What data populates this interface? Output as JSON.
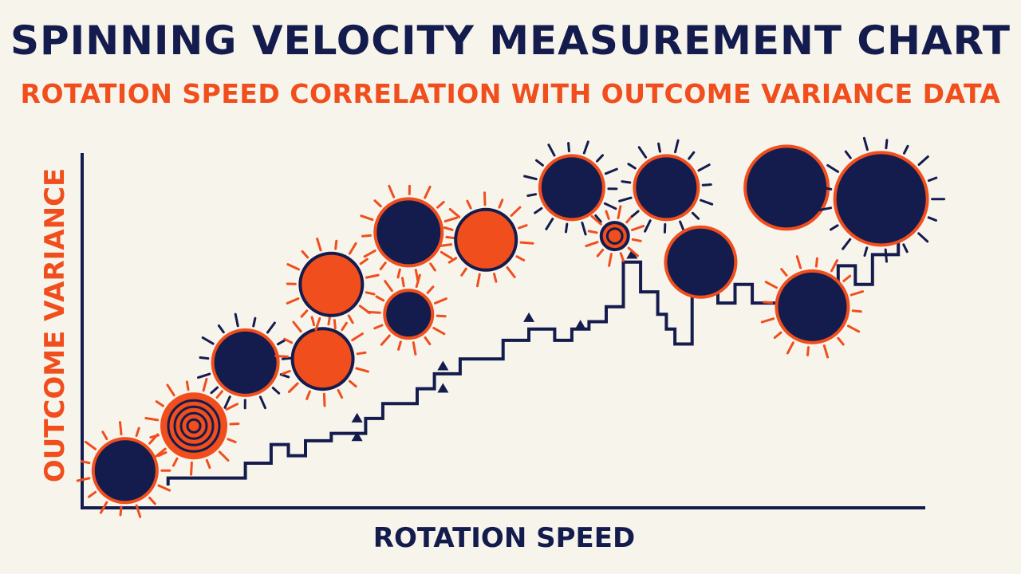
{
  "colors": {
    "navy": "#141b4d",
    "orange": "#f04e1c",
    "background": "#f7f4ec"
  },
  "chart_data": {
    "type": "scatter",
    "title": "SPINNING VELOCITY MEASUREMENT CHART",
    "subtitle": "ROTATION SPEED CORRELATION WITH OUTCOME VARIANCE DATA",
    "xlabel": "ROTATION SPEED",
    "ylabel": "OUTCOME VARIANCE",
    "xlim": [
      0,
      100
    ],
    "ylim": [
      0,
      100
    ],
    "grid": false,
    "legend": "none",
    "points": [
      {
        "x": 5,
        "y": 10,
        "size": 40,
        "fill": "navy",
        "ring": "orange",
        "rays": "orange",
        "concentric": false
      },
      {
        "x": 13,
        "y": 22,
        "size": 40,
        "fill": "orange",
        "ring": "orange",
        "rays": "orange",
        "concentric": true
      },
      {
        "x": 19,
        "y": 39,
        "size": 41,
        "fill": "navy",
        "ring": "orange",
        "rays": "navy",
        "concentric": false
      },
      {
        "x": 28,
        "y": 40,
        "size": 38,
        "fill": "orange",
        "ring": "navy",
        "rays": "orange",
        "concentric": false
      },
      {
        "x": 29,
        "y": 60,
        "size": 39,
        "fill": "orange",
        "ring": "navy",
        "rays": "orange",
        "concentric": false
      },
      {
        "x": 38,
        "y": 52,
        "size": 30,
        "fill": "navy",
        "ring": "orange",
        "rays": "orange",
        "concentric": false
      },
      {
        "x": 38,
        "y": 74,
        "size": 42,
        "fill": "navy",
        "ring": "orange",
        "rays": "orange",
        "concentric": false
      },
      {
        "x": 47,
        "y": 72,
        "size": 38,
        "fill": "orange",
        "ring": "navy",
        "rays": "orange",
        "concentric": false
      },
      {
        "x": 57,
        "y": 86,
        "size": 40,
        "fill": "navy",
        "ring": "orange",
        "rays": "navy",
        "concentric": false
      },
      {
        "x": 62,
        "y": 73,
        "size": 17,
        "fill": "orange",
        "ring": "navy",
        "rays": "orange",
        "concentric": false
      },
      {
        "x": 68,
        "y": 86,
        "size": 40,
        "fill": "navy",
        "ring": "orange",
        "rays": "navy",
        "concentric": false
      },
      {
        "x": 72,
        "y": 66,
        "size": 44,
        "fill": "navy",
        "ring": "orange",
        "rays": "none",
        "concentric": false
      },
      {
        "x": 82,
        "y": 86,
        "size": 52,
        "fill": "navy",
        "ring": "orange",
        "rays": "none",
        "concentric": false
      },
      {
        "x": 85,
        "y": 54,
        "size": 45,
        "fill": "navy",
        "ring": "orange",
        "rays": "orange",
        "concentric": false
      },
      {
        "x": 93,
        "y": 83,
        "size": 58,
        "fill": "navy",
        "ring": "orange",
        "rays": "navy",
        "concentric": false
      }
    ],
    "step_line": [
      [
        10,
        6
      ],
      [
        10,
        8
      ],
      [
        19,
        8
      ],
      [
        19,
        12
      ],
      [
        22,
        12
      ],
      [
        22,
        17
      ],
      [
        24,
        17
      ],
      [
        24,
        14
      ],
      [
        26,
        14
      ],
      [
        26,
        18
      ],
      [
        29,
        18
      ],
      [
        29,
        20
      ],
      [
        33,
        20
      ],
      [
        33,
        24
      ],
      [
        35,
        24
      ],
      [
        35,
        28
      ],
      [
        39,
        28
      ],
      [
        39,
        32
      ],
      [
        41,
        32
      ],
      [
        41,
        36
      ],
      [
        44,
        36
      ],
      [
        44,
        40
      ],
      [
        49,
        40
      ],
      [
        49,
        45
      ],
      [
        52,
        45
      ],
      [
        52,
        48
      ],
      [
        55,
        48
      ],
      [
        55,
        45
      ],
      [
        57,
        45
      ],
      [
        57,
        48
      ],
      [
        59,
        48
      ],
      [
        59,
        50
      ],
      [
        61,
        50
      ],
      [
        61,
        54
      ],
      [
        63,
        54
      ],
      [
        63,
        66
      ],
      [
        65,
        66
      ],
      [
        65,
        58
      ],
      [
        67,
        58
      ],
      [
        67,
        52
      ],
      [
        68,
        52
      ],
      [
        68,
        48
      ],
      [
        69,
        48
      ],
      [
        69,
        44
      ],
      [
        71,
        44
      ],
      [
        71,
        58
      ],
      [
        74,
        58
      ],
      [
        74,
        55
      ],
      [
        76,
        55
      ],
      [
        76,
        60
      ],
      [
        78,
        60
      ],
      [
        78,
        55
      ],
      [
        82,
        55
      ],
      [
        82,
        59
      ],
      [
        88,
        59
      ],
      [
        88,
        65
      ],
      [
        90,
        65
      ],
      [
        90,
        60
      ],
      [
        92,
        60
      ],
      [
        92,
        68
      ],
      [
        95,
        68
      ],
      [
        95,
        73
      ],
      [
        96,
        73
      ],
      [
        96,
        78
      ]
    ],
    "markers": [
      {
        "x": 32,
        "y": 24
      },
      {
        "x": 32,
        "y": 19
      },
      {
        "x": 42,
        "y": 38
      },
      {
        "x": 42,
        "y": 32
      },
      {
        "x": 52,
        "y": 51
      },
      {
        "x": 58,
        "y": 49
      },
      {
        "x": 64,
        "y": 68
      }
    ]
  }
}
